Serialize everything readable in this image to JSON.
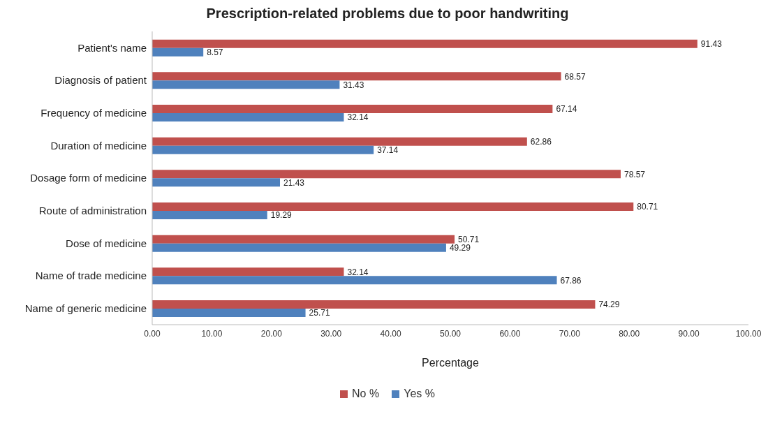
{
  "chart_data": {
    "type": "bar",
    "orientation": "horizontal",
    "title": "Prescription-related problems due to poor handwriting",
    "xlabel": "Percentage",
    "categories": [
      "Patient's name",
      "Diagnosis of patient",
      "Frequency of medicine",
      "Duration of medicine",
      "Dosage form of medicine",
      "Route of administration",
      "Dose of medicine",
      "Name of trade medicine",
      "Name of generic medicine"
    ],
    "series": [
      {
        "name": "No %",
        "color": "#c0504d",
        "values": [
          91.43,
          68.57,
          67.14,
          62.86,
          78.57,
          80.71,
          50.71,
          32.14,
          74.29
        ]
      },
      {
        "name": "Yes %",
        "color": "#4f81bd",
        "values": [
          8.57,
          31.43,
          32.14,
          37.14,
          21.43,
          19.29,
          49.29,
          67.86,
          25.71
        ]
      }
    ],
    "xlim": [
      0,
      100
    ],
    "xticks": [
      {
        "value": 0,
        "label": "0.00"
      },
      {
        "value": 10,
        "label": "10.00"
      },
      {
        "value": 20,
        "label": "20.00"
      },
      {
        "value": 30,
        "label": "30.00"
      },
      {
        "value": 40,
        "label": "40.00"
      },
      {
        "value": 50,
        "label": "50.00"
      },
      {
        "value": 60,
        "label": "60.00"
      },
      {
        "value": 70,
        "label": "70.00"
      },
      {
        "value": 80,
        "label": "80.00"
      },
      {
        "value": 90,
        "label": "90.00"
      },
      {
        "value": 100,
        "label": "100.00"
      }
    ],
    "data_labels": true,
    "grid": false,
    "legend": "bottom"
  }
}
